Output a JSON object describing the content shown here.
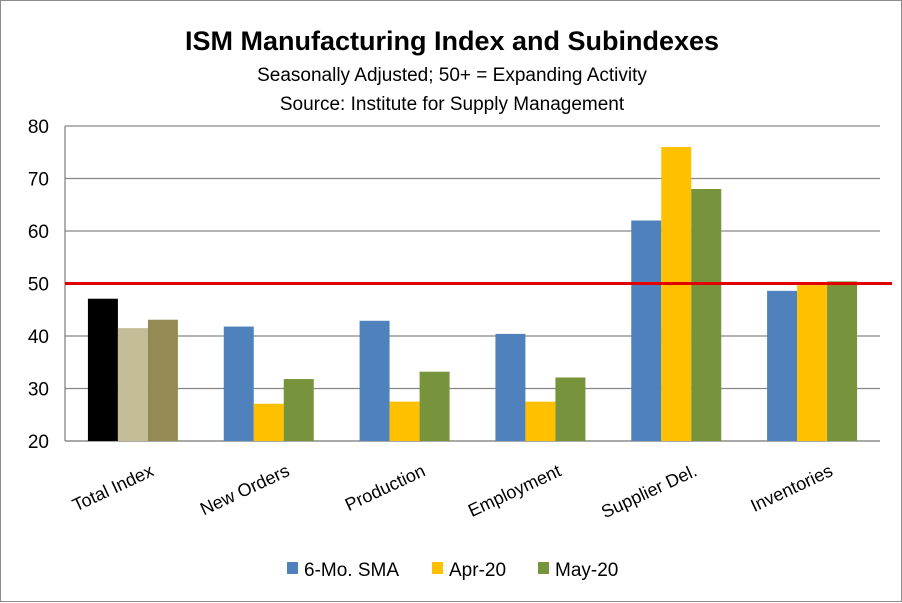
{
  "chart_data": {
    "type": "bar",
    "title": "ISM Manufacturing  Index and Subindexes",
    "subtitle_lines": [
      "Seasonally Adjusted; 50+ = Expanding Activity",
      "Source:  Institute for Supply Management"
    ],
    "categories": [
      "Total Index",
      "New Orders",
      "Production",
      "Employment",
      "Supplier Del.",
      "Inventories"
    ],
    "series": [
      {
        "name": "6-Mo. SMA",
        "color": "#4F81BD",
        "values": [
          47.1,
          41.8,
          42.9,
          40.4,
          62.0,
          48.6
        ]
      },
      {
        "name": "Apr-20",
        "color": "#FFC000",
        "values": [
          41.5,
          27.1,
          27.5,
          27.5,
          76.0,
          49.7
        ]
      },
      {
        "name": "May-20",
        "color": "#77933C",
        "values": [
          43.1,
          31.8,
          33.2,
          32.1,
          68.0,
          50.4
        ]
      }
    ],
    "total_index_colors": [
      "#000000",
      "#C4BD97",
      "#948A54"
    ],
    "y_ticks": [
      20,
      30,
      40,
      50,
      60,
      70,
      80
    ],
    "ylim": [
      20,
      80
    ],
    "reference_line": {
      "value": 50,
      "color": "#E00000"
    },
    "grid": true,
    "legend_position": "bottom"
  }
}
